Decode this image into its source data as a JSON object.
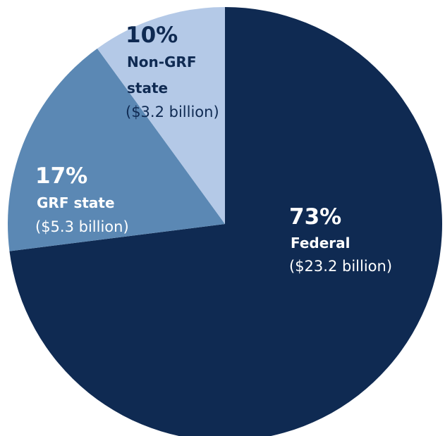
{
  "chart_data": {
    "type": "pie",
    "title": "",
    "slices": [
      {
        "pct_label": "73%",
        "name_lines": [
          "Federal"
        ],
        "amount": "($23.2 billion)",
        "value": 73,
        "billions": 23.2,
        "color": "#0f2a52",
        "text_color": "#ffffff"
      },
      {
        "pct_label": "17%",
        "name_lines": [
          "GRF state"
        ],
        "amount": "($5.3 billion)",
        "value": 17,
        "billions": 5.3,
        "color": "#5b88b4",
        "text_color": "#ffffff"
      },
      {
        "pct_label": "10%",
        "name_lines": [
          "Non-GRF",
          "state"
        ],
        "amount": "($3.2 billion)",
        "value": 10,
        "billions": 3.2,
        "color": "#b4c9e7",
        "text_color": "#0f2a52"
      }
    ]
  }
}
